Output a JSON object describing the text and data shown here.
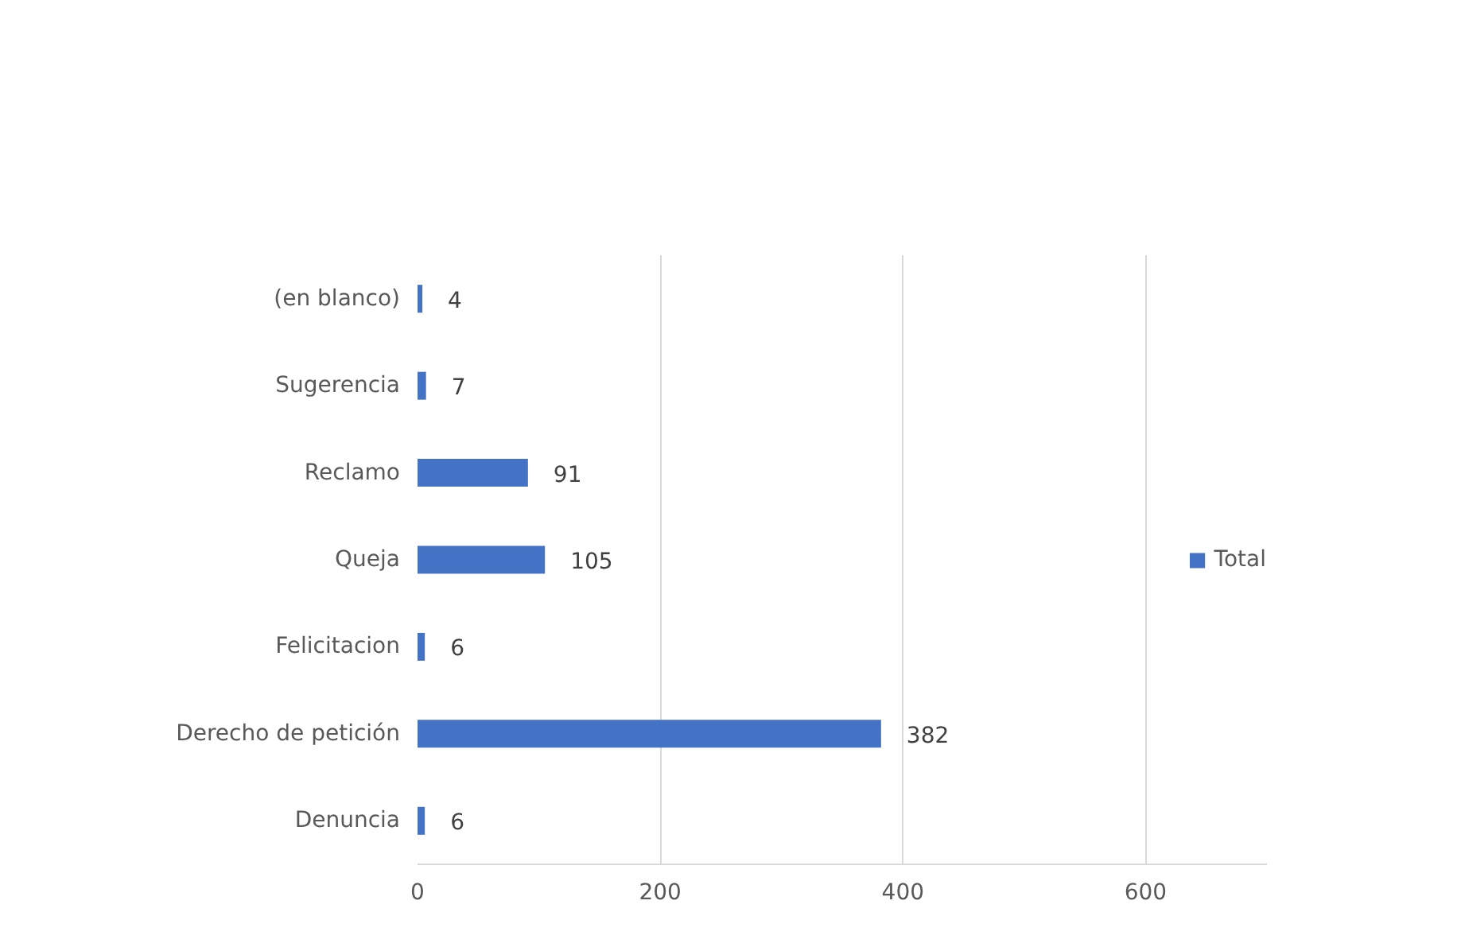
{
  "chart_data": {
    "type": "bar",
    "orientation": "horizontal",
    "categories": [
      "(en blanco)",
      "Sugerencia",
      "Reclamo",
      "Queja",
      "Felicitacion",
      "Derecho de petición",
      "Denuncia"
    ],
    "series": [
      {
        "name": "Total",
        "color": "#4472c4",
        "values": [
          4,
          7,
          91,
          105,
          6,
          382,
          6
        ]
      }
    ],
    "xlim": [
      0,
      700
    ],
    "xticks": [
      0,
      200,
      400,
      600
    ],
    "grid": "x",
    "legend": "right",
    "data_labels": true
  }
}
